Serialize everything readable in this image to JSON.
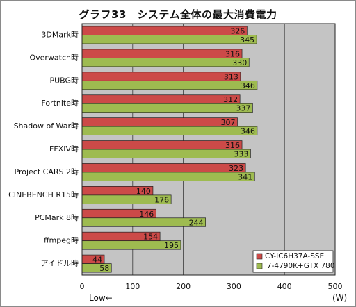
{
  "chart_data": {
    "type": "bar",
    "orientation": "horizontal",
    "title": "グラフ33　システム全体の最大消費電力",
    "categories": [
      "3DMark時",
      "Overwatch時",
      "PUBG時",
      "Fortnite時",
      "Shadow of War時",
      "FFXIV時",
      "Project CARS 2時",
      "CINEBENCH R15時",
      "PCMark 8時",
      "ffmpeg時",
      "アイドル時"
    ],
    "series": [
      {
        "name": "CY-IC6H37A-SSE",
        "color": "#cc4a48",
        "values": [
          326,
          316,
          313,
          312,
          307,
          316,
          323,
          140,
          146,
          154,
          44
        ]
      },
      {
        "name": "i7-4790K+GTX 780",
        "color": "#9ebb50",
        "values": [
          345,
          330,
          346,
          337,
          346,
          333,
          341,
          176,
          244,
          195,
          58
        ]
      }
    ],
    "xlim": [
      0,
      500
    ],
    "xticks": [
      0,
      100,
      200,
      300,
      400,
      500
    ],
    "xlabel_left": "Low←",
    "xlabel_unit": "(W)",
    "grid": true,
    "legend_position": "bottom-right"
  }
}
